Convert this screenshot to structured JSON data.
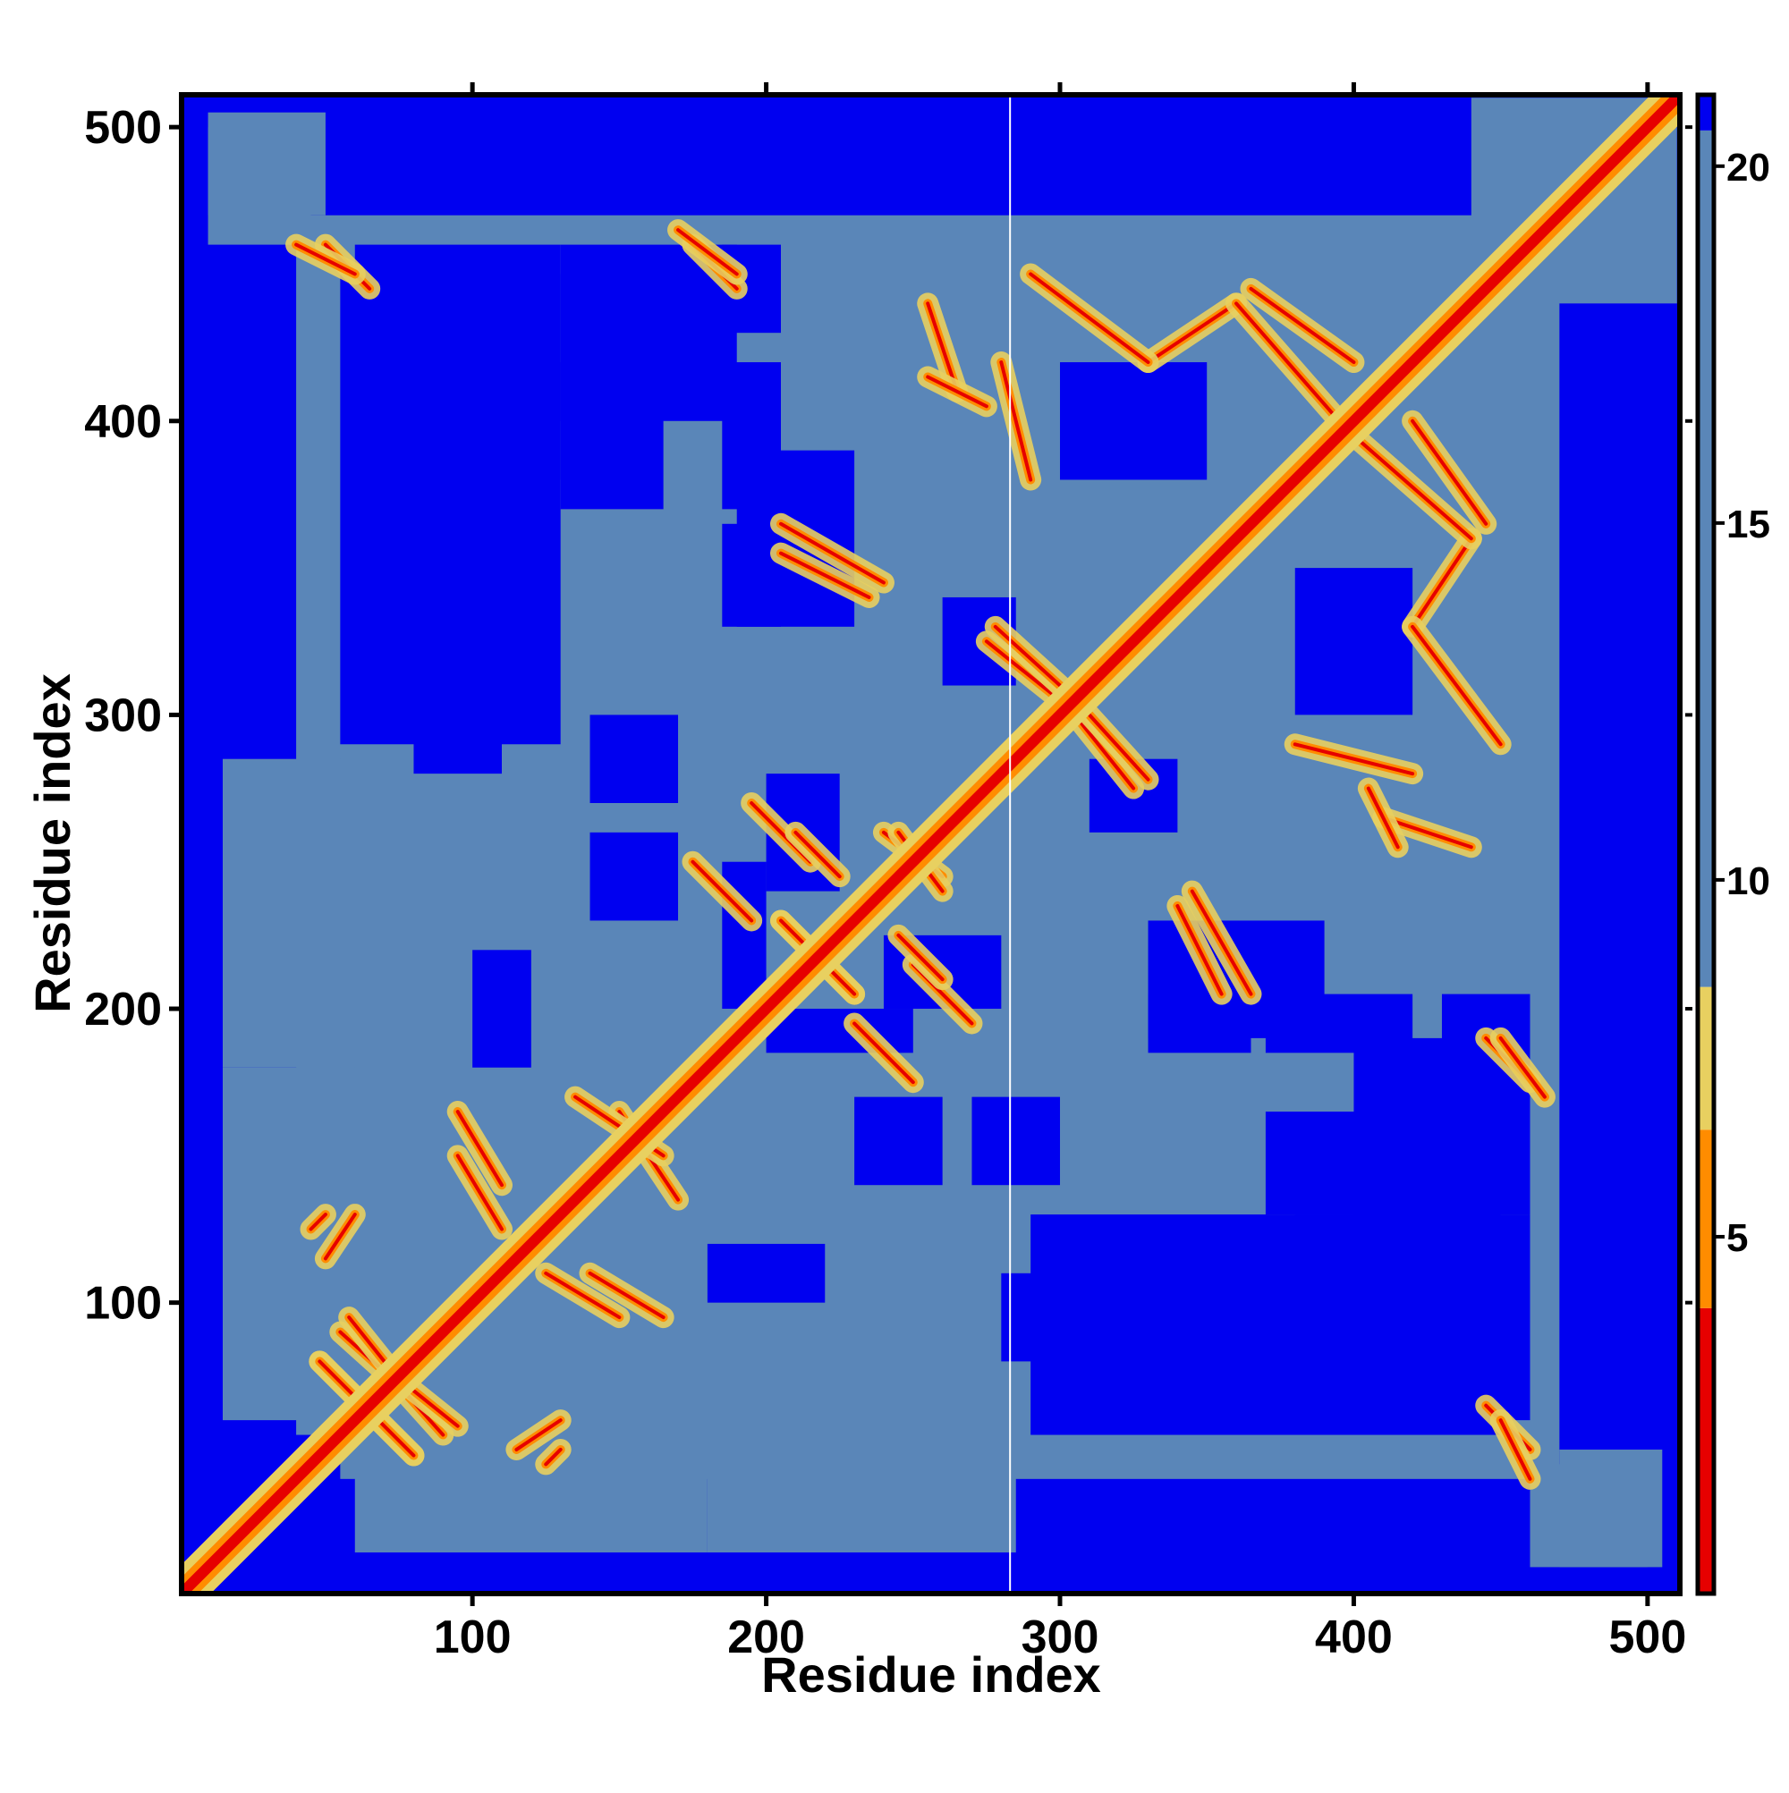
{
  "chart_data": {
    "type": "heatmap",
    "title": "",
    "xlabel": "Residue index",
    "ylabel": "Residue index",
    "xlim": [
      1,
      511
    ],
    "ylim": [
      1,
      511
    ],
    "x_ticks": [
      100,
      200,
      300,
      400,
      500
    ],
    "y_ticks": [
      100,
      200,
      300,
      400,
      500
    ],
    "colorbar": {
      "ticks": [
        5,
        10,
        15,
        20
      ],
      "range": [
        0,
        21
      ],
      "colors": {
        "contact_close": "#e60000",
        "contact_mid": "#ff8c00",
        "contact_edge": "#e8d060",
        "near": "#5a86b8",
        "far": "#0000f0"
      },
      "breaks": [
        4,
        6.5,
        8.5,
        20.5
      ]
    },
    "background": "#0000f0",
    "gap_column_residue": 283,
    "diagonal": {
      "from": 1,
      "to": 511
    },
    "near_regions": [
      {
        "x": [
          40,
          460
        ],
        "y": [
          55,
          470
        ]
      },
      {
        "x": [
          15,
          60
        ],
        "y": [
          60,
          180
        ]
      },
      {
        "x": [
          180,
          285
        ],
        "y": [
          15,
          60
        ]
      },
      {
        "x": [
          455,
          510
        ],
        "y": [
          440,
          500
        ]
      },
      {
        "x": [
          10,
          50
        ],
        "y": [
          470,
          505
        ]
      },
      {
        "x": [
          460,
          500
        ],
        "y": [
          10,
          45
        ]
      }
    ],
    "far_holes": [
      {
        "x": [
          55,
          130
        ],
        "y": [
          290,
          450
        ]
      },
      {
        "x": [
          130,
          165
        ],
        "y": [
          370,
          420
        ]
      },
      {
        "x": [
          190,
          230
        ],
        "y": [
          330,
          390
        ]
      },
      {
        "x": [
          300,
          350
        ],
        "y": [
          380,
          420
        ]
      },
      {
        "x": [
          380,
          460
        ],
        "y": [
          60,
          130
        ]
      },
      {
        "x": [
          400,
          460
        ],
        "y": [
          130,
          190
        ]
      },
      {
        "x": [
          300,
          380
        ],
        "y": [
          60,
          120
        ]
      },
      {
        "x": [
          200,
          250
        ],
        "y": [
          185,
          200
        ]
      },
      {
        "x": [
          370,
          420
        ],
        "y": [
          185,
          205
        ]
      },
      {
        "x": [
          430,
          460
        ],
        "y": [
          185,
          205
        ]
      },
      {
        "x": [
          330,
          365
        ],
        "y": [
          185,
          205
        ]
      },
      {
        "x": [
          180,
          220
        ],
        "y": [
          100,
          120
        ]
      },
      {
        "x": [
          80,
          110
        ],
        "y": [
          280,
          300
        ]
      },
      {
        "x": [
          310,
          340
        ],
        "y": [
          260,
          285
        ]
      },
      {
        "x": [
          200,
          225
        ],
        "y": [
          240,
          280
        ]
      },
      {
        "x": [
          140,
          170
        ],
        "y": [
          270,
          300
        ]
      },
      {
        "x": [
          230,
          260
        ],
        "y": [
          140,
          170
        ]
      }
    ],
    "contacts": [
      {
        "x": [
          48,
          80
        ],
        "y": [
          80,
          48
        ]
      },
      {
        "x": [
          55,
          75
        ],
        "y": [
          90,
          72
        ]
      },
      {
        "x": [
          80,
          95
        ],
        "y": [
          70,
          58
        ]
      },
      {
        "x": [
          95,
          110
        ],
        "y": [
          150,
          125
        ]
      },
      {
        "x": [
          115,
          130
        ],
        "y": [
          50,
          60
        ]
      },
      {
        "x": [
          140,
          165
        ],
        "y": [
          110,
          95
        ]
      },
      {
        "x": [
          150,
          170
        ],
        "y": [
          165,
          135
        ]
      },
      {
        "x": [
          175,
          195
        ],
        "y": [
          250,
          230
        ]
      },
      {
        "x": [
          195,
          215
        ],
        "y": [
          270,
          250
        ]
      },
      {
        "x": [
          205,
          230
        ],
        "y": [
          230,
          205
        ]
      },
      {
        "x": [
          240,
          260
        ],
        "y": [
          260,
          245
        ]
      },
      {
        "x": [
          245,
          260
        ],
        "y": [
          225,
          210
        ]
      },
      {
        "x": [
          205,
          235
        ],
        "y": [
          355,
          340
        ]
      },
      {
        "x": [
          275,
          300
        ],
        "y": [
          325,
          305
        ]
      },
      {
        "x": [
          310,
          330
        ],
        "y": [
          300,
          278
        ]
      },
      {
        "x": [
          345,
          365
        ],
        "y": [
          240,
          205
        ]
      },
      {
        "x": [
          330,
          360
        ],
        "y": [
          420,
          440
        ]
      },
      {
        "x": [
          365,
          400
        ],
        "y": [
          445,
          420
        ]
      },
      {
        "x": [
          400,
          440
        ],
        "y": [
          395,
          360
        ]
      },
      {
        "x": [
          420,
          450
        ],
        "y": [
          330,
          290
        ]
      },
      {
        "x": [
          380,
          420
        ],
        "y": [
          290,
          280
        ]
      },
      {
        "x": [
          410,
          440
        ],
        "y": [
          265,
          255
        ]
      },
      {
        "x": [
          445,
          460
        ],
        "y": [
          190,
          175
        ]
      },
      {
        "x": [
          445,
          460
        ],
        "y": [
          65,
          50
        ]
      },
      {
        "x": [
          40,
          60
        ],
        "y": [
          460,
          450
        ]
      },
      {
        "x": [
          170,
          190
        ],
        "y": [
          465,
          450
        ]
      },
      {
        "x": [
          255,
          275
        ],
        "y": [
          415,
          405
        ]
      },
      {
        "x": [
          45,
          50
        ],
        "y": [
          125,
          130
        ]
      }
    ]
  }
}
